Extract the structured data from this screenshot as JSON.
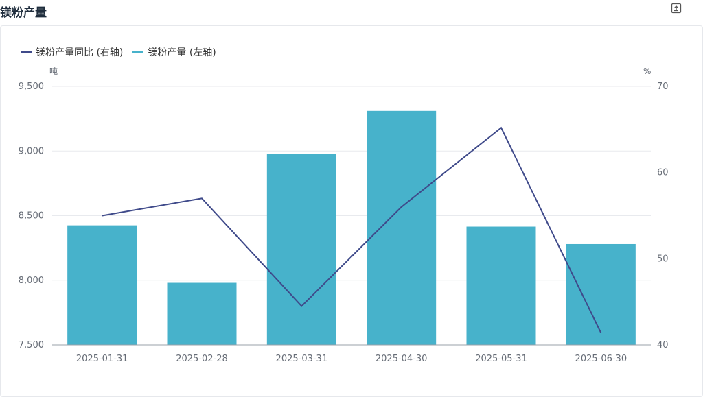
{
  "page": {
    "title": "镁粉产量",
    "export_icon": "export-icon"
  },
  "colors": {
    "bar": "#47b2cb",
    "line": "#3f4a8a",
    "grid": "#e8eaee",
    "axis": "#666c76"
  },
  "legend": [
    {
      "label": "镁粉产量同比 (右轴)",
      "color": "#3f4a8a"
    },
    {
      "label": "镁粉产量 (左轴)",
      "color": "#47b2cb"
    }
  ],
  "chart_data": {
    "type": "bar",
    "categories": [
      "2025-01-31",
      "2025-02-28",
      "2025-03-31",
      "2025-04-30",
      "2025-05-31",
      "2025-06-30"
    ],
    "series": [
      {
        "name": "镁粉产量 (左轴)",
        "type": "bar",
        "axis": "left",
        "values": [
          8425,
          7980,
          8980,
          9310,
          8415,
          8280
        ]
      },
      {
        "name": "镁粉产量同比 (右轴)",
        "type": "line",
        "axis": "right",
        "values": [
          55,
          57,
          44.5,
          56,
          65.2,
          41.4
        ]
      }
    ],
    "left_axis": {
      "unit": "吨",
      "min": 7500,
      "max": 9500,
      "ticks": [
        "7,500",
        "8,000",
        "8,500",
        "9,000",
        "9,500"
      ]
    },
    "right_axis": {
      "unit": "%",
      "min": 40,
      "max": 70,
      "ticks": [
        "40",
        "50",
        "60",
        "70"
      ]
    },
    "grid": true,
    "legend_position": "top-left"
  }
}
